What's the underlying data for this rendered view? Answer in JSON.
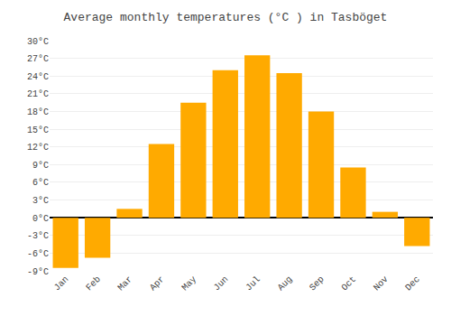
{
  "chart_data": {
    "type": "bar",
    "title": "Average monthly temperatures (°C ) in Tasböget",
    "categories": [
      "Jan",
      "Feb",
      "Mar",
      "Apr",
      "May",
      "Jun",
      "Jul",
      "Aug",
      "Sep",
      "Oct",
      "Nov",
      "Dec"
    ],
    "values": [
      -8.5,
      -6.8,
      1.5,
      12.5,
      19.5,
      25.0,
      27.5,
      24.5,
      18.0,
      8.5,
      1.0,
      -4.8
    ],
    "color": "#FFAA00",
    "ylim": [
      -9,
      30
    ],
    "yticks": [
      {
        "value": -9,
        "label": "-9°C"
      },
      {
        "value": -6,
        "label": "-6°C"
      },
      {
        "value": -3,
        "label": "-3°C"
      },
      {
        "value": 0,
        "label": "0°C"
      },
      {
        "value": 3,
        "label": "3°C"
      },
      {
        "value": 6,
        "label": "6°C"
      },
      {
        "value": 9,
        "label": "9°C"
      },
      {
        "value": 12,
        "label": "12°C"
      },
      {
        "value": 15,
        "label": "15°C"
      },
      {
        "value": 18,
        "label": "18°C"
      },
      {
        "value": 21,
        "label": "21°C"
      },
      {
        "value": 24,
        "label": "24°C"
      },
      {
        "value": 27,
        "label": "27°C"
      },
      {
        "value": 30,
        "label": "30°C"
      }
    ],
    "grid": true
  }
}
